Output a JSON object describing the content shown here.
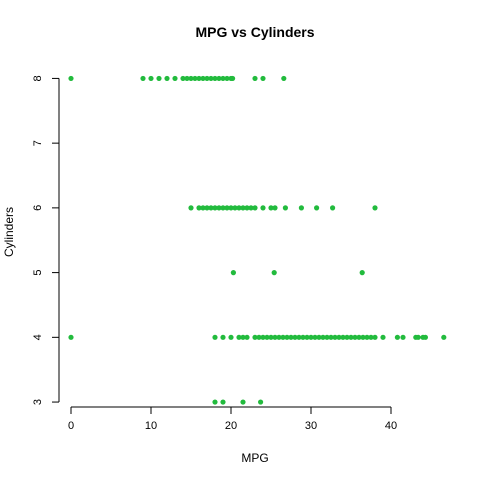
{
  "chart_data": {
    "type": "scatter",
    "title": "MPG vs Cylinders",
    "xlabel": "MPG",
    "ylabel": "Cylinders",
    "xlim": [
      -1.5,
      47.5
    ],
    "ylim": [
      2.8,
      8.3
    ],
    "x_ticks": [
      0,
      10,
      20,
      30,
      40
    ],
    "y_ticks": [
      3,
      4,
      5,
      6,
      7,
      8
    ],
    "grid": false,
    "point_color": "#22bb3d",
    "series": [
      {
        "points": [
          {
            "x": 18.0,
            "y": 3
          },
          {
            "x": 19.0,
            "y": 3
          },
          {
            "x": 21.5,
            "y": 3
          },
          {
            "x": 23.7,
            "y": 3
          },
          {
            "x": 0.0,
            "y": 4
          },
          {
            "x": 18.0,
            "y": 4
          },
          {
            "x": 19.0,
            "y": 4
          },
          {
            "x": 20.0,
            "y": 4
          },
          {
            "x": 21.0,
            "y": 4
          },
          {
            "x": 21.5,
            "y": 4
          },
          {
            "x": 22.0,
            "y": 4
          },
          {
            "x": 23.0,
            "y": 4
          },
          {
            "x": 23.5,
            "y": 4
          },
          {
            "x": 24.0,
            "y": 4
          },
          {
            "x": 24.5,
            "y": 4
          },
          {
            "x": 25.0,
            "y": 4
          },
          {
            "x": 25.5,
            "y": 4
          },
          {
            "x": 26.0,
            "y": 4
          },
          {
            "x": 26.5,
            "y": 4
          },
          {
            "x": 27.0,
            "y": 4
          },
          {
            "x": 27.5,
            "y": 4
          },
          {
            "x": 28.0,
            "y": 4
          },
          {
            "x": 28.5,
            "y": 4
          },
          {
            "x": 29.0,
            "y": 4
          },
          {
            "x": 29.5,
            "y": 4
          },
          {
            "x": 30.0,
            "y": 4
          },
          {
            "x": 30.5,
            "y": 4
          },
          {
            "x": 31.0,
            "y": 4
          },
          {
            "x": 31.5,
            "y": 4
          },
          {
            "x": 32.0,
            "y": 4
          },
          {
            "x": 32.5,
            "y": 4
          },
          {
            "x": 33.0,
            "y": 4
          },
          {
            "x": 33.5,
            "y": 4
          },
          {
            "x": 34.0,
            "y": 4
          },
          {
            "x": 34.5,
            "y": 4
          },
          {
            "x": 35.0,
            "y": 4
          },
          {
            "x": 35.5,
            "y": 4
          },
          {
            "x": 36.0,
            "y": 4
          },
          {
            "x": 36.5,
            "y": 4
          },
          {
            "x": 37.0,
            "y": 4
          },
          {
            "x": 37.5,
            "y": 4
          },
          {
            "x": 38.0,
            "y": 4
          },
          {
            "x": 39.0,
            "y": 4
          },
          {
            "x": 40.8,
            "y": 4
          },
          {
            "x": 41.5,
            "y": 4
          },
          {
            "x": 43.1,
            "y": 4
          },
          {
            "x": 43.4,
            "y": 4
          },
          {
            "x": 44.0,
            "y": 4
          },
          {
            "x": 44.3,
            "y": 4
          },
          {
            "x": 46.6,
            "y": 4
          },
          {
            "x": 20.3,
            "y": 5
          },
          {
            "x": 25.4,
            "y": 5
          },
          {
            "x": 36.4,
            "y": 5
          },
          {
            "x": 15.0,
            "y": 6
          },
          {
            "x": 16.0,
            "y": 6
          },
          {
            "x": 16.5,
            "y": 6
          },
          {
            "x": 17.0,
            "y": 6
          },
          {
            "x": 17.5,
            "y": 6
          },
          {
            "x": 18.0,
            "y": 6
          },
          {
            "x": 18.5,
            "y": 6
          },
          {
            "x": 19.0,
            "y": 6
          },
          {
            "x": 19.5,
            "y": 6
          },
          {
            "x": 20.0,
            "y": 6
          },
          {
            "x": 20.5,
            "y": 6
          },
          {
            "x": 21.0,
            "y": 6
          },
          {
            "x": 21.5,
            "y": 6
          },
          {
            "x": 22.0,
            "y": 6
          },
          {
            "x": 22.5,
            "y": 6
          },
          {
            "x": 23.0,
            "y": 6
          },
          {
            "x": 24.0,
            "y": 6
          },
          {
            "x": 25.0,
            "y": 6
          },
          {
            "x": 25.5,
            "y": 6
          },
          {
            "x": 26.8,
            "y": 6
          },
          {
            "x": 28.8,
            "y": 6
          },
          {
            "x": 30.7,
            "y": 6
          },
          {
            "x": 32.7,
            "y": 6
          },
          {
            "x": 38.0,
            "y": 6
          },
          {
            "x": 0.0,
            "y": 8
          },
          {
            "x": 9.0,
            "y": 8
          },
          {
            "x": 10.0,
            "y": 8
          },
          {
            "x": 11.0,
            "y": 8
          },
          {
            "x": 12.0,
            "y": 8
          },
          {
            "x": 13.0,
            "y": 8
          },
          {
            "x": 14.0,
            "y": 8
          },
          {
            "x": 14.5,
            "y": 8
          },
          {
            "x": 15.0,
            "y": 8
          },
          {
            "x": 15.5,
            "y": 8
          },
          {
            "x": 16.0,
            "y": 8
          },
          {
            "x": 16.5,
            "y": 8
          },
          {
            "x": 17.0,
            "y": 8
          },
          {
            "x": 17.5,
            "y": 8
          },
          {
            "x": 18.0,
            "y": 8
          },
          {
            "x": 18.5,
            "y": 8
          },
          {
            "x": 19.0,
            "y": 8
          },
          {
            "x": 19.5,
            "y": 8
          },
          {
            "x": 20.0,
            "y": 8
          },
          {
            "x": 20.2,
            "y": 8
          },
          {
            "x": 23.0,
            "y": 8
          },
          {
            "x": 24.0,
            "y": 8
          },
          {
            "x": 26.6,
            "y": 8
          }
        ]
      }
    ]
  }
}
